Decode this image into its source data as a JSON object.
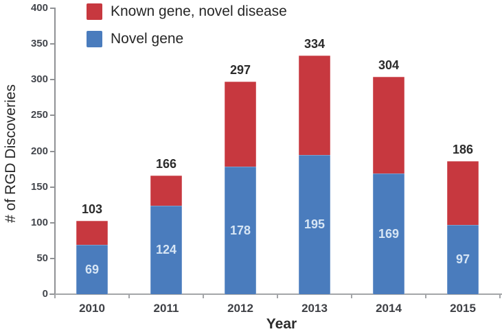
{
  "chart_data": {
    "type": "bar",
    "stacked": true,
    "title": "",
    "xlabel": "Year",
    "ylabel": "# of RGD Discoveries",
    "categories": [
      "2010",
      "2011",
      "2012",
      "2013",
      "2014",
      "2015"
    ],
    "series": [
      {
        "name": "Novel gene",
        "color": "#4a7cbd",
        "label_color": "#d6e5f4",
        "values": [
          69,
          124,
          178,
          195,
          169,
          97
        ],
        "value_labels_shown": true
      },
      {
        "name": "Known gene, novel disease",
        "color": "#c7383f",
        "values": [
          34,
          42,
          119,
          139,
          135,
          89
        ],
        "value_labels_shown": false
      }
    ],
    "totals": [
      103,
      166,
      297,
      334,
      304,
      186
    ],
    "ylim": [
      0,
      400
    ],
    "ytick_step": 50,
    "yticks": [
      0,
      50,
      100,
      150,
      200,
      250,
      300,
      350,
      400
    ],
    "grid": false,
    "legend_position": "top-left",
    "colors": {
      "axis_line": "#9a9c9f",
      "tick_label": "#43464c",
      "total_label": "#2b2b2b",
      "legend_text": "#262626"
    }
  }
}
